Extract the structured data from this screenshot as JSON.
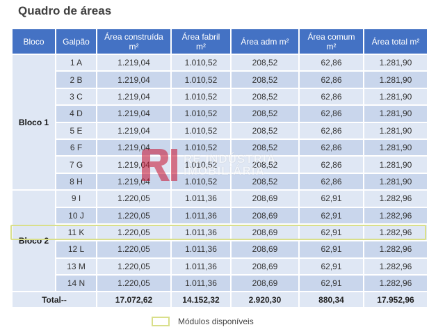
{
  "title": "Quadro de áreas",
  "headers": [
    "Bloco",
    "Galpão",
    "Área construída m²",
    "Área fabril m²",
    "Área adm m²",
    "Área comum m²",
    "Área total m²"
  ],
  "blocks": [
    {
      "name": "Bloco 1",
      "rows": [
        [
          "1 A",
          "1.219,04",
          "1.010,52",
          "208,52",
          "62,86",
          "1.281,90"
        ],
        [
          "2 B",
          "1.219,04",
          "1.010,52",
          "208,52",
          "62,86",
          "1.281,90"
        ],
        [
          "3 C",
          "1.219,04",
          "1.010,52",
          "208,52",
          "62,86",
          "1.281,90"
        ],
        [
          "4 D",
          "1.219,04",
          "1.010,52",
          "208,52",
          "62,86",
          "1.281,90"
        ],
        [
          "5 E",
          "1.219,04",
          "1.010,52",
          "208,52",
          "62,86",
          "1.281,90"
        ],
        [
          "6 F",
          "1.219,04",
          "1.010,52",
          "208,52",
          "62,86",
          "1.281,90"
        ],
        [
          "7 G",
          "1.219,04",
          "1.010,52",
          "208,52",
          "62,86",
          "1.281,90"
        ],
        [
          "8 H",
          "1.219,04",
          "1.010,52",
          "208,52",
          "62,86",
          "1.281,90"
        ]
      ]
    },
    {
      "name": "Bloco 2",
      "rows": [
        [
          "9 I",
          "1.220,05",
          "1.011,36",
          "208,69",
          "62,91",
          "1.282,96"
        ],
        [
          "10 J",
          "1.220,05",
          "1.011,36",
          "208,69",
          "62,91",
          "1.282,96"
        ],
        [
          "11 K",
          "1.220,05",
          "1.011,36",
          "208,69",
          "62,91",
          "1.282,96"
        ],
        [
          "12 L",
          "1.220,05",
          "1.011,36",
          "208,69",
          "62,91",
          "1.282,96"
        ],
        [
          "13 M",
          "1.220,05",
          "1.011,36",
          "208,69",
          "62,91",
          "1.282,96"
        ],
        [
          "14 N",
          "1.220,05",
          "1.011,36",
          "208,69",
          "62,91",
          "1.282,96"
        ]
      ]
    }
  ],
  "total": {
    "label": "Total--",
    "values": [
      "17.072,62",
      "14.152,32",
      "2.920,30",
      "880,34",
      "17.952,96"
    ]
  },
  "highlighted_row": "11 K",
  "legend": {
    "label": "Módulos disponíveis"
  },
  "watermark": {
    "line1": "RE INDÚSTRIA",
    "line2": "IMOBILIÁRIA"
  },
  "colors": {
    "header": "#4472c4",
    "cell": "#dfe7f4",
    "cell_alt": "#c9d6ec",
    "highlight": "#d9df8a",
    "logo": "#c8102e"
  }
}
